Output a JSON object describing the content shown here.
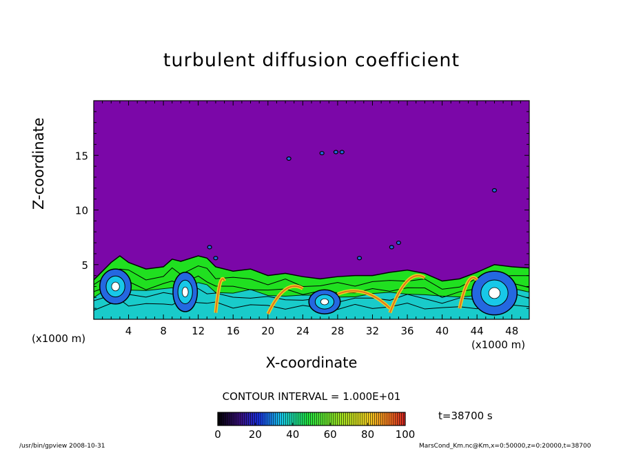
{
  "chart_data": {
    "type": "heatmap",
    "title": "turbulent diffusion coefficient",
    "xlabel": "X-coordinate",
    "ylabel": "Z-coordinate",
    "x_unit": "(x1000 m)",
    "z_unit": "(x1000 m)",
    "xlim": [
      0,
      50
    ],
    "ylim": [
      0,
      20
    ],
    "x_ticks": [
      4,
      8,
      12,
      16,
      20,
      24,
      28,
      32,
      36,
      40,
      44,
      48
    ],
    "y_ticks": [
      5,
      10,
      15
    ],
    "contour_interval_text": "CONTOUR INTERVAL = 1.000E+01",
    "time_text": "t=38700 s",
    "colorbar": {
      "min": 0,
      "max": 100,
      "tick_labels": [
        0,
        20,
        40,
        60,
        80,
        100
      ]
    },
    "background_value_color": "#7b07a8",
    "layer_top_profile": {
      "x": [
        0,
        2,
        3,
        4,
        6,
        8,
        9,
        10,
        12,
        13,
        14,
        16,
        18,
        20,
        22,
        24,
        26,
        28,
        30,
        32,
        34,
        36,
        38,
        40,
        42,
        44,
        46,
        48,
        50
      ],
      "z": [
        3.6,
        5.2,
        5.8,
        5.2,
        4.6,
        4.8,
        5.5,
        5.3,
        5.8,
        5.6,
        4.8,
        4.4,
        4.6,
        4.0,
        4.2,
        3.9,
        3.7,
        3.9,
        4.0,
        4.0,
        4.3,
        4.5,
        4.2,
        3.5,
        3.7,
        4.3,
        5.0,
        4.8,
        4.7
      ]
    },
    "vortices": [
      {
        "x": 2.5,
        "z": 3.0,
        "rx": 1.8,
        "rz": 1.6
      },
      {
        "x": 10.5,
        "z": 2.5,
        "rx": 1.4,
        "rz": 1.8
      },
      {
        "x": 26.5,
        "z": 1.6,
        "rx": 1.8,
        "rz": 1.1
      },
      {
        "x": 46.0,
        "z": 2.4,
        "rx": 2.6,
        "rz": 2.0
      }
    ]
  },
  "footer": {
    "left": "/usr/bin/gpview   2008-10-31",
    "right": "MarsCond_Km.nc@Km,x=0:50000,z=0:20000,t=38700"
  },
  "colors": {
    "background": "#7b07a8",
    "cyan": "#18c8e8",
    "green": "#20e020",
    "blue": "#2468e0",
    "yellow": "#f0d020",
    "orange": "#e07020",
    "contour": "#000000"
  }
}
